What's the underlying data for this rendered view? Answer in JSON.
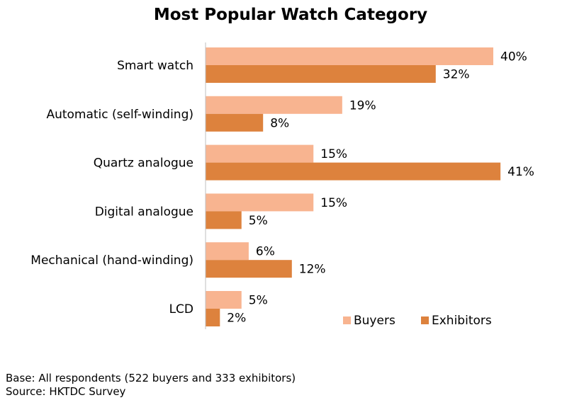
{
  "chart_data": {
    "type": "bar",
    "orientation": "horizontal",
    "title": "Most Popular Watch Category",
    "categories": [
      "Smart watch",
      "Automatic (self-winding)",
      "Quartz analogue",
      "Digital analogue",
      "Mechanical (hand-winding)",
      "LCD"
    ],
    "series": [
      {
        "name": "Buyers",
        "values": [
          40,
          19,
          15,
          15,
          6,
          5
        ],
        "color": "#F8B490"
      },
      {
        "name": "Exhibitors",
        "values": [
          32,
          8,
          41,
          5,
          12,
          2
        ],
        "color": "#DD823D"
      }
    ],
    "value_format": "{v}%",
    "xlim": [
      0,
      50
    ],
    "grid": false,
    "legend_position": "bottom-right"
  },
  "footnotes": {
    "base": "Base: All respondents (522 buyers and 333 exhibitors)",
    "source": "Source: HKTDC Survey"
  }
}
